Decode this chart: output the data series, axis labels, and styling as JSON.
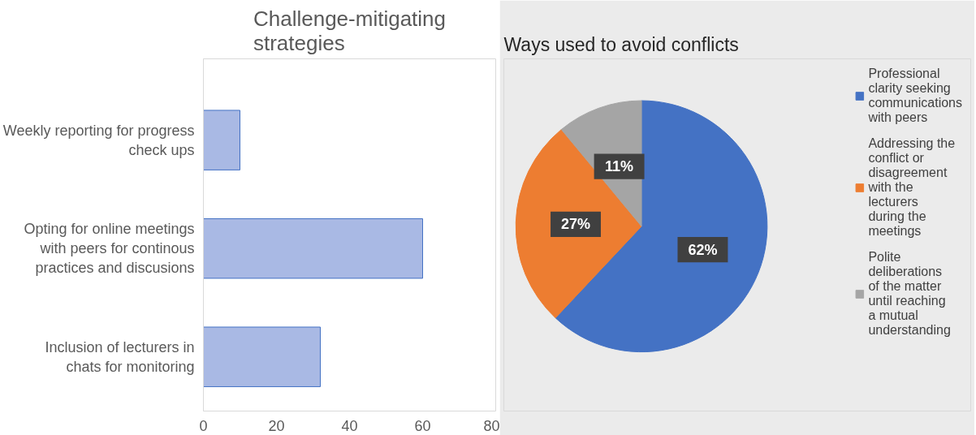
{
  "chart_data": [
    {
      "type": "bar",
      "orientation": "horizontal",
      "title": "Challenge-mitigating strategies",
      "categories": [
        "Weekly reporting for progress check ups",
        "Opting for online meetings with peers for continous practices and discusions",
        "Inclusion of lecturers in chats for monitoring"
      ],
      "values": [
        10,
        60,
        32
      ],
      "color": "#a9b9e4",
      "xlim": [
        0,
        80
      ],
      "xticks": [
        0,
        20,
        40,
        60,
        80
      ],
      "grid": false
    },
    {
      "type": "pie",
      "title": "Ways used to avoid conflicts",
      "categories": [
        "Professional clarity seeking communications with peers",
        "Addressing the conflict or disagreement with the lecturers during the meetings",
        "Polite deliberations of the matter until reaching a mutual understanding"
      ],
      "values": [
        62,
        27,
        11
      ],
      "colors": [
        "#4472c4",
        "#ed7d31",
        "#a5a5a5"
      ],
      "value_labels": [
        "62%",
        "27%",
        "11%"
      ],
      "legend": "top right"
    }
  ]
}
